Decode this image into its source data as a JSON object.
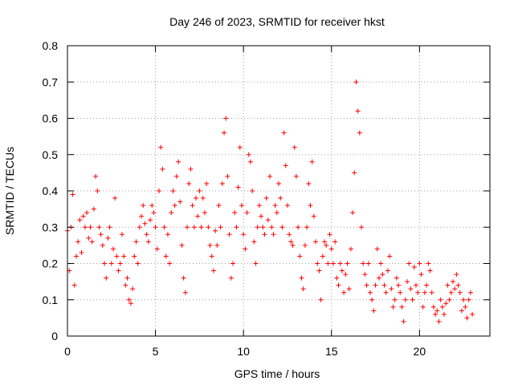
{
  "chart_data": {
    "type": "scatter",
    "title": "Day 246 of 2023, SRMTID for receiver hkst",
    "xlabel": "GPS time / hours",
    "ylabel": "SRMTID / TECUs",
    "xlim": [
      0,
      24
    ],
    "ylim": [
      0,
      0.8
    ],
    "xticks": [
      0,
      5,
      10,
      15,
      20
    ],
    "yticks": [
      0,
      0.1,
      0.2,
      0.3,
      0.4,
      0.5,
      0.6,
      0.7,
      0.8
    ],
    "grid": "dotted",
    "marker": "plus",
    "color": "#ff0000",
    "series": [
      {
        "name": "SRMTID",
        "points": [
          [
            0.0,
            0.29
          ],
          [
            0.1,
            0.18
          ],
          [
            0.2,
            0.3
          ],
          [
            0.3,
            0.39
          ],
          [
            0.4,
            0.14
          ],
          [
            0.5,
            0.22
          ],
          [
            0.6,
            0.26
          ],
          [
            0.7,
            0.32
          ],
          [
            0.8,
            0.23
          ],
          [
            0.9,
            0.33
          ],
          [
            1.0,
            0.3
          ],
          [
            1.1,
            0.34
          ],
          [
            1.2,
            0.27
          ],
          [
            1.3,
            0.3
          ],
          [
            1.4,
            0.26
          ],
          [
            1.5,
            0.35
          ],
          [
            1.6,
            0.44
          ],
          [
            1.7,
            0.4
          ],
          [
            1.8,
            0.3
          ],
          [
            1.9,
            0.28
          ],
          [
            2.0,
            0.25
          ],
          [
            2.1,
            0.2
          ],
          [
            2.2,
            0.16
          ],
          [
            2.3,
            0.27
          ],
          [
            2.4,
            0.3
          ],
          [
            2.5,
            0.2
          ],
          [
            2.6,
            0.24
          ],
          [
            2.7,
            0.38
          ],
          [
            2.8,
            0.22
          ],
          [
            2.9,
            0.18
          ],
          [
            3.0,
            0.2
          ],
          [
            3.1,
            0.28
          ],
          [
            3.2,
            0.22
          ],
          [
            3.3,
            0.14
          ],
          [
            3.4,
            0.16
          ],
          [
            3.5,
            0.1
          ],
          [
            3.6,
            0.09
          ],
          [
            3.7,
            0.13
          ],
          [
            3.8,
            0.22
          ],
          [
            3.9,
            0.26
          ],
          [
            4.0,
            0.2
          ],
          [
            4.1,
            0.3
          ],
          [
            4.2,
            0.33
          ],
          [
            4.3,
            0.36
          ],
          [
            4.4,
            0.31
          ],
          [
            4.5,
            0.28
          ],
          [
            4.6,
            0.26
          ],
          [
            4.7,
            0.32
          ],
          [
            4.8,
            0.36
          ],
          [
            4.9,
            0.34
          ],
          [
            5.0,
            0.3
          ],
          [
            5.1,
            0.24
          ],
          [
            5.2,
            0.4
          ],
          [
            5.3,
            0.52
          ],
          [
            5.4,
            0.46
          ],
          [
            5.5,
            0.3
          ],
          [
            5.6,
            0.22
          ],
          [
            5.7,
            0.28
          ],
          [
            5.8,
            0.2
          ],
          [
            5.9,
            0.34
          ],
          [
            6.0,
            0.4
          ],
          [
            6.1,
            0.36
          ],
          [
            6.2,
            0.44
          ],
          [
            6.3,
            0.48
          ],
          [
            6.4,
            0.37
          ],
          [
            6.5,
            0.25
          ],
          [
            6.6,
            0.16
          ],
          [
            6.7,
            0.12
          ],
          [
            6.8,
            0.3
          ],
          [
            6.9,
            0.42
          ],
          [
            7.0,
            0.46
          ],
          [
            7.1,
            0.36
          ],
          [
            7.2,
            0.3
          ],
          [
            7.3,
            0.38
          ],
          [
            7.4,
            0.33
          ],
          [
            7.5,
            0.4
          ],
          [
            7.6,
            0.3
          ],
          [
            7.7,
            0.38
          ],
          [
            7.8,
            0.34
          ],
          [
            7.9,
            0.42
          ],
          [
            8.0,
            0.3
          ],
          [
            8.1,
            0.25
          ],
          [
            8.2,
            0.22
          ],
          [
            8.3,
            0.18
          ],
          [
            8.4,
            0.29
          ],
          [
            8.5,
            0.25
          ],
          [
            8.6,
            0.36
          ],
          [
            8.7,
            0.3
          ],
          [
            8.8,
            0.42
          ],
          [
            8.9,
            0.56
          ],
          [
            9.0,
            0.6
          ],
          [
            9.1,
            0.44
          ],
          [
            9.2,
            0.28
          ],
          [
            9.3,
            0.16
          ],
          [
            9.4,
            0.2
          ],
          [
            9.5,
            0.34
          ],
          [
            9.6,
            0.3
          ],
          [
            9.7,
            0.41
          ],
          [
            9.8,
            0.52
          ],
          [
            9.9,
            0.36
          ],
          [
            10.0,
            0.28
          ],
          [
            10.1,
            0.24
          ],
          [
            10.2,
            0.34
          ],
          [
            10.3,
            0.5
          ],
          [
            10.4,
            0.48
          ],
          [
            10.5,
            0.4
          ],
          [
            10.6,
            0.26
          ],
          [
            10.7,
            0.2
          ],
          [
            10.8,
            0.3
          ],
          [
            10.9,
            0.36
          ],
          [
            11.0,
            0.33
          ],
          [
            11.1,
            0.3
          ],
          [
            11.2,
            0.28
          ],
          [
            11.3,
            0.38
          ],
          [
            11.4,
            0.32
          ],
          [
            11.5,
            0.44
          ],
          [
            11.6,
            0.3
          ],
          [
            11.7,
            0.28
          ],
          [
            11.8,
            0.36
          ],
          [
            11.9,
            0.34
          ],
          [
            12.0,
            0.42
          ],
          [
            12.1,
            0.38
          ],
          [
            12.2,
            0.3
          ],
          [
            12.3,
            0.56
          ],
          [
            12.4,
            0.47
          ],
          [
            12.5,
            0.36
          ],
          [
            12.6,
            0.28
          ],
          [
            12.7,
            0.26
          ],
          [
            12.8,
            0.25
          ],
          [
            12.9,
            0.52
          ],
          [
            13.0,
            0.44
          ],
          [
            13.1,
            0.3
          ],
          [
            13.2,
            0.22
          ],
          [
            13.3,
            0.16
          ],
          [
            13.4,
            0.13
          ],
          [
            13.5,
            0.25
          ],
          [
            13.6,
            0.3
          ],
          [
            13.7,
            0.42
          ],
          [
            13.8,
            0.36
          ],
          [
            13.9,
            0.48
          ],
          [
            14.0,
            0.33
          ],
          [
            14.1,
            0.26
          ],
          [
            14.2,
            0.2
          ],
          [
            14.3,
            0.18
          ],
          [
            14.4,
            0.1
          ],
          [
            14.5,
            0.22
          ],
          [
            14.6,
            0.26
          ],
          [
            14.7,
            0.25
          ],
          [
            14.8,
            0.2
          ],
          [
            14.9,
            0.28
          ],
          [
            15.0,
            0.24
          ],
          [
            15.1,
            0.2
          ],
          [
            15.2,
            0.26
          ],
          [
            15.3,
            0.16
          ],
          [
            15.4,
            0.14
          ],
          [
            15.5,
            0.2
          ],
          [
            15.6,
            0.18
          ],
          [
            15.7,
            0.12
          ],
          [
            15.8,
            0.17
          ],
          [
            15.9,
            0.2
          ],
          [
            16.0,
            0.13
          ],
          [
            16.1,
            0.24
          ],
          [
            16.2,
            0.34
          ],
          [
            16.3,
            0.45
          ],
          [
            16.4,
            0.7
          ],
          [
            16.5,
            0.62
          ],
          [
            16.6,
            0.56
          ],
          [
            16.7,
            0.3
          ],
          [
            16.8,
            0.2
          ],
          [
            16.9,
            0.17
          ],
          [
            17.0,
            0.14
          ],
          [
            17.1,
            0.2
          ],
          [
            17.2,
            0.12
          ],
          [
            17.3,
            0.1
          ],
          [
            17.4,
            0.07
          ],
          [
            17.5,
            0.14
          ],
          [
            17.6,
            0.24
          ],
          [
            17.7,
            0.16
          ],
          [
            17.8,
            0.2
          ],
          [
            17.9,
            0.17
          ],
          [
            18.0,
            0.14
          ],
          [
            18.1,
            0.12
          ],
          [
            18.2,
            0.18
          ],
          [
            18.3,
            0.22
          ],
          [
            18.4,
            0.13
          ],
          [
            18.5,
            0.08
          ],
          [
            18.6,
            0.1
          ],
          [
            18.7,
            0.16
          ],
          [
            18.8,
            0.14
          ],
          [
            18.9,
            0.12
          ],
          [
            19.0,
            0.08
          ],
          [
            19.1,
            0.04
          ],
          [
            19.2,
            0.1
          ],
          [
            19.3,
            0.15
          ],
          [
            19.4,
            0.2
          ],
          [
            19.5,
            0.13
          ],
          [
            19.6,
            0.1
          ],
          [
            19.7,
            0.19
          ],
          [
            19.8,
            0.14
          ],
          [
            19.9,
            0.12
          ],
          [
            20.0,
            0.2
          ],
          [
            20.1,
            0.17
          ],
          [
            20.2,
            0.08
          ],
          [
            20.3,
            0.12
          ],
          [
            20.4,
            0.14
          ],
          [
            20.5,
            0.2
          ],
          [
            20.6,
            0.18
          ],
          [
            20.7,
            0.12
          ],
          [
            20.8,
            0.08
          ],
          [
            20.9,
            0.06
          ],
          [
            21.0,
            0.07
          ],
          [
            21.1,
            0.04
          ],
          [
            21.2,
            0.1
          ],
          [
            21.3,
            0.08
          ],
          [
            21.4,
            0.06
          ],
          [
            21.5,
            0.09
          ],
          [
            21.6,
            0.14
          ],
          [
            21.7,
            0.1
          ],
          [
            21.8,
            0.12
          ],
          [
            21.9,
            0.15
          ],
          [
            22.0,
            0.13
          ],
          [
            22.1,
            0.17
          ],
          [
            22.2,
            0.14
          ],
          [
            22.3,
            0.12
          ],
          [
            22.4,
            0.07
          ],
          [
            22.5,
            0.1
          ],
          [
            22.6,
            0.08
          ],
          [
            22.7,
            0.05
          ],
          [
            22.8,
            0.1
          ],
          [
            22.9,
            0.12
          ],
          [
            23.0,
            0.06
          ]
        ]
      }
    ]
  }
}
